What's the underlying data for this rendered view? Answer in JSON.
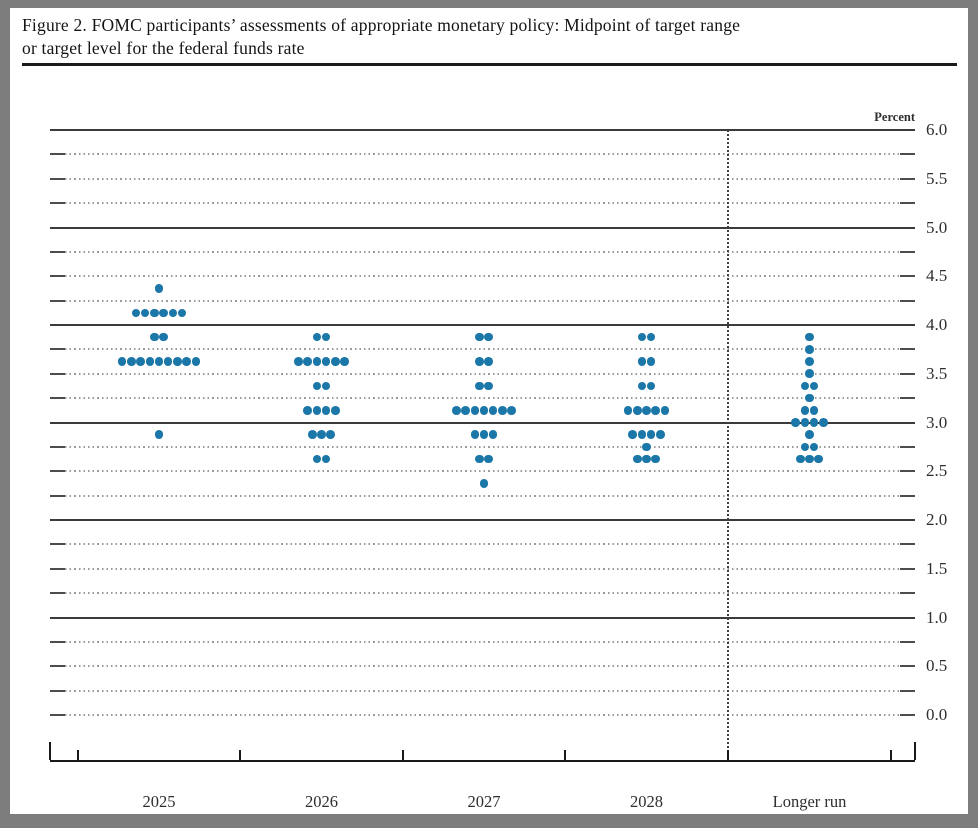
{
  "page": {
    "title_line1": "Figure 2. FOMC participants’ assessments of appropriate monetary policy: Midpoint of target range",
    "title_line2": "or target level for the federal funds rate"
  },
  "chart_data": {
    "type": "scatter",
    "subtype": "fomc-dot-plot",
    "title": "Figure 2. FOMC participants’ assessments of appropriate monetary policy: Midpoint of target range or target level for the federal funds rate",
    "unit_label": "Percent",
    "ylim": [
      0.0,
      6.0
    ],
    "ytick_step": 0.5,
    "grid_minor_step": 0.25,
    "solid_gridlines_at": [
      1.0,
      2.0,
      3.0,
      4.0,
      5.0,
      6.0
    ],
    "ytick_labels": [
      "6.0",
      "5.5",
      "5.0",
      "4.5",
      "4.0",
      "3.5",
      "3.0",
      "2.5",
      "2.0",
      "1.5",
      "1.0",
      "0.5",
      "0.0"
    ],
    "ytick_values": [
      6.0,
      5.5,
      5.0,
      4.5,
      4.0,
      3.5,
      3.0,
      2.5,
      2.0,
      1.5,
      1.0,
      0.5,
      0.0
    ],
    "categories": [
      "2025",
      "2026",
      "2027",
      "2028",
      "Longer run"
    ],
    "separator_before_category_index": 4,
    "legend": null,
    "grid_on": true,
    "dots": [
      {
        "category": "2025",
        "distribution": [
          {
            "rate": 4.375,
            "count": 1
          },
          {
            "rate": 4.125,
            "count": 6
          },
          {
            "rate": 3.875,
            "count": 2
          },
          {
            "rate": 3.625,
            "count": 9
          },
          {
            "rate": 2.875,
            "count": 1
          }
        ]
      },
      {
        "category": "2026",
        "distribution": [
          {
            "rate": 3.875,
            "count": 2
          },
          {
            "rate": 3.625,
            "count": 6
          },
          {
            "rate": 3.375,
            "count": 2
          },
          {
            "rate": 3.125,
            "count": 4
          },
          {
            "rate": 2.875,
            "count": 3
          },
          {
            "rate": 2.625,
            "count": 2
          }
        ]
      },
      {
        "category": "2027",
        "distribution": [
          {
            "rate": 3.875,
            "count": 2
          },
          {
            "rate": 3.625,
            "count": 2
          },
          {
            "rate": 3.375,
            "count": 2
          },
          {
            "rate": 3.125,
            "count": 7
          },
          {
            "rate": 2.875,
            "count": 3
          },
          {
            "rate": 2.625,
            "count": 2
          },
          {
            "rate": 2.375,
            "count": 1
          }
        ]
      },
      {
        "category": "2028",
        "distribution": [
          {
            "rate": 3.875,
            "count": 2
          },
          {
            "rate": 3.625,
            "count": 2
          },
          {
            "rate": 3.375,
            "count": 2
          },
          {
            "rate": 3.125,
            "count": 5
          },
          {
            "rate": 2.875,
            "count": 4
          },
          {
            "rate": 2.75,
            "count": 1
          },
          {
            "rate": 2.625,
            "count": 3
          }
        ]
      },
      {
        "category": "Longer run",
        "distribution": [
          {
            "rate": 3.875,
            "count": 1
          },
          {
            "rate": 3.75,
            "count": 1
          },
          {
            "rate": 3.625,
            "count": 1
          },
          {
            "rate": 3.5,
            "count": 1
          },
          {
            "rate": 3.375,
            "count": 2
          },
          {
            "rate": 3.25,
            "count": 1
          },
          {
            "rate": 3.125,
            "count": 2
          },
          {
            "rate": 3.0,
            "count": 4
          },
          {
            "rate": 2.875,
            "count": 1
          },
          {
            "rate": 2.75,
            "count": 2
          },
          {
            "rate": 2.625,
            "count": 3
          }
        ]
      }
    ],
    "colors": {
      "dot": "#1a77a8",
      "solid_grid": "#3b3b3b",
      "dotted_grid": "#9a9a9a",
      "grid_cap": "#4d4d4d",
      "axis": "#1a1a1a",
      "text": "#2e2e2e",
      "frame": "#7d7d7d"
    }
  }
}
